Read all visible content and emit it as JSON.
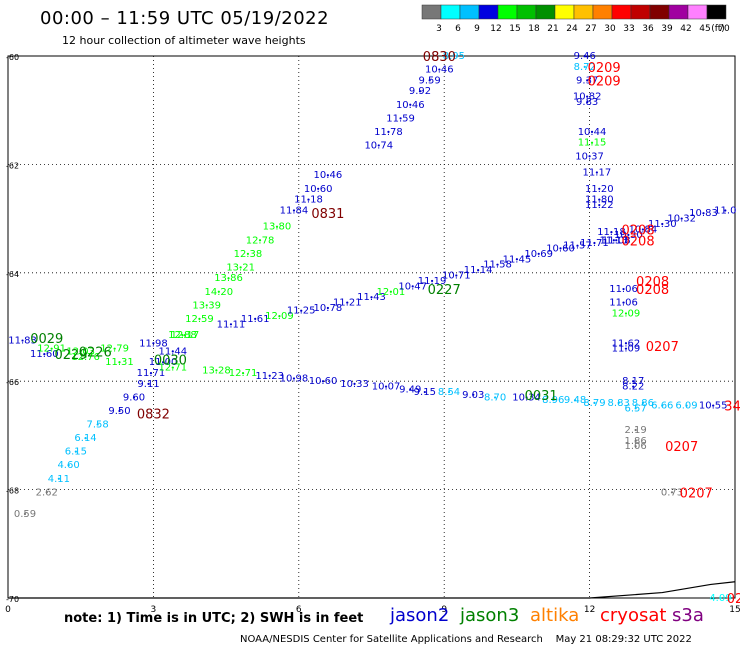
{
  "header": {
    "title": "00:00 – 11:59 UTC 05/19/2022",
    "subtitle": "12 hour collection of altimeter wave heights"
  },
  "colorbar": {
    "labels": [
      "3",
      "6",
      "9",
      "12",
      "15",
      "18",
      "21",
      "24",
      "27",
      "30",
      "33",
      "36",
      "39",
      "42",
      "45",
      "70"
    ],
    "unit": "(ft)",
    "colors": [
      "#777777",
      "#00ffff",
      "#00c0ff",
      "#0000e0",
      "#00ff00",
      "#00c000",
      "#009000",
      "#ffff00",
      "#ffc000",
      "#ff8000",
      "#ff0000",
      "#c00000",
      "#800000",
      "#a000a0",
      "#ff80ff",
      "#000000"
    ]
  },
  "footer": {
    "note": "note:  1) Time is in UTC;  2) SWH is in feet",
    "satellites": [
      {
        "name": "jason2",
        "color": "#0000cc"
      },
      {
        "name": "jason3",
        "color": "#008000"
      },
      {
        "name": "altika",
        "color": "#ff8000"
      },
      {
        "name": "cryosat",
        "color": "#ff0000"
      },
      {
        "name": "s3a",
        "color": "#800080"
      }
    ],
    "credit": "NOAA/NESDIS Center for Satellite Applications and Research",
    "timestamp": "May 21 08:29:32 UTC 2022"
  },
  "chart_data": {
    "type": "scatter",
    "xlim": [
      0,
      15
    ],
    "ylim": [
      -70,
      -60
    ],
    "xticks": [
      "0",
      "3",
      "6",
      "9",
      "12",
      "15"
    ],
    "yticks": [
      "-60",
      "-62",
      "-64",
      "-66",
      "-68",
      "-70"
    ],
    "grid": true,
    "series": [
      {
        "name": "pass-0830",
        "color": "#0000cc",
        "points": [
          [
            9.2,
            -60.0,
            "8.95",
            "#00c0ff"
          ],
          [
            8.9,
            -60.25,
            "10.46",
            "#0000cc"
          ],
          [
            8.7,
            -60.45,
            "9.59",
            "#0000cc"
          ],
          [
            8.5,
            -60.65,
            "9.92",
            "#0000cc"
          ],
          [
            8.3,
            -60.9,
            "10.46",
            "#0000cc"
          ],
          [
            8.1,
            -61.15,
            "11.59",
            "#0000cc"
          ],
          [
            7.85,
            -61.4,
            "11.78",
            "#0000cc"
          ],
          [
            7.65,
            -61.65,
            "10.74",
            "#0000cc"
          ],
          [
            6.6,
            -62.2,
            "10.46",
            "#0000cc"
          ],
          [
            6.4,
            -62.45,
            "10.60",
            "#0000cc"
          ],
          [
            6.2,
            -62.65,
            "11.18",
            "#0000cc"
          ],
          [
            5.9,
            -62.85,
            "11.84",
            "#0000cc"
          ],
          [
            5.55,
            -63.15,
            "13.80",
            "#00ff00"
          ],
          [
            5.2,
            -63.4,
            "12.78",
            "#00ff00"
          ],
          [
            4.95,
            -63.65,
            "12.38",
            "#00ff00"
          ],
          [
            4.8,
            -63.9,
            "13.21",
            "#00ff00"
          ],
          [
            4.55,
            -64.1,
            "13.86",
            "#00ff00"
          ],
          [
            4.35,
            -64.35,
            "14.20",
            "#00ff00"
          ],
          [
            4.1,
            -64.6,
            "13.39",
            "#00ff00"
          ],
          [
            3.95,
            -64.85,
            "12.59",
            "#00ff00"
          ],
          [
            3.65,
            -65.15,
            "12.17",
            "#00ff00"
          ],
          [
            3.4,
            -65.45,
            "11.44",
            "#0000cc"
          ],
          [
            3.2,
            -65.65,
            "11.00",
            "#0000cc"
          ],
          [
            2.95,
            -65.85,
            "11.71",
            "#0000cc"
          ],
          [
            2.9,
            -66.05,
            "9.11",
            "#0000cc"
          ],
          [
            2.6,
            -66.3,
            "9.60",
            "#0000cc"
          ],
          [
            2.3,
            -66.55,
            "9.50",
            "#0000cc"
          ],
          [
            1.85,
            -66.8,
            "7.58",
            "#00c0ff"
          ],
          [
            1.6,
            -67.05,
            "6.14",
            "#00c0ff"
          ],
          [
            1.4,
            -67.3,
            "6.15",
            "#00c0ff"
          ],
          [
            1.25,
            -67.55,
            "4.60",
            "#00c0ff"
          ],
          [
            1.05,
            -67.8,
            "4.11",
            "#00c0ff"
          ],
          [
            0.8,
            -68.05,
            "2.62",
            "#777777"
          ],
          [
            0.35,
            -68.45,
            "0.59",
            "#777777"
          ]
        ]
      },
      {
        "name": "pass-0227",
        "color": "#0000cc",
        "points": [
          [
            0.3,
            -65.25,
            "11.83",
            "#0000cc"
          ],
          [
            0.75,
            -65.5,
            "11.60",
            "#0000cc"
          ],
          [
            1.5,
            -65.45,
            "12.03",
            "#00ff00"
          ],
          [
            2.2,
            -65.4,
            "12.79",
            "#00ff00"
          ],
          [
            3.0,
            -65.3,
            "11.98",
            "#0000cc"
          ],
          [
            3.6,
            -65.15,
            "12.88",
            "#00ff00"
          ],
          [
            4.6,
            -64.95,
            "11.11",
            "#0000cc"
          ],
          [
            5.1,
            -64.85,
            "11.61",
            "#0000cc"
          ],
          [
            5.6,
            -64.8,
            "12.09",
            "#00ff00"
          ],
          [
            6.05,
            -64.7,
            "11.25",
            "#0000cc"
          ],
          [
            6.6,
            -64.65,
            "10.78",
            "#0000cc"
          ],
          [
            7.0,
            -64.55,
            "11.21",
            "#0000cc"
          ],
          [
            7.5,
            -64.45,
            "11.43",
            "#0000cc"
          ],
          [
            7.9,
            -64.35,
            "12.01",
            "#00ff00"
          ],
          [
            8.35,
            -64.25,
            "10.47",
            "#0000cc"
          ],
          [
            8.75,
            -64.15,
            "11.19",
            "#0000cc"
          ],
          [
            9.25,
            -64.05,
            "10.71",
            "#0000cc"
          ],
          [
            9.7,
            -63.95,
            "11.14",
            "#0000cc"
          ],
          [
            10.1,
            -63.85,
            "11.58",
            "#0000cc"
          ],
          [
            10.5,
            -63.75,
            "11.45",
            "#0000cc"
          ],
          [
            10.95,
            -63.65,
            "10.69",
            "#0000cc"
          ],
          [
            11.4,
            -63.55,
            "10.60",
            "#0000cc"
          ],
          [
            11.75,
            -63.5,
            "11.57",
            "#0000cc"
          ],
          [
            12.1,
            -63.45,
            "11.71",
            "#0000cc"
          ],
          [
            12.55,
            -63.4,
            "11.08",
            "#0000cc"
          ],
          [
            12.8,
            -63.3,
            "10.30",
            "#0000cc"
          ],
          [
            13.1,
            -63.2,
            "10.84",
            "#0000cc"
          ],
          [
            13.5,
            -63.1,
            "11.30",
            "#0000cc"
          ],
          [
            13.9,
            -63.0,
            "10.32",
            "#0000cc"
          ],
          [
            14.35,
            -62.9,
            "10.83",
            "#0000cc"
          ],
          [
            14.8,
            -62.85,
            "11.0",
            "#0000cc"
          ]
        ]
      },
      {
        "name": "pass-0031",
        "color": "#0000cc",
        "points": [
          [
            0.9,
            -65.4,
            "12.91",
            "#00ff00"
          ],
          [
            1.6,
            -65.55,
            "12.76",
            "#00ff00"
          ],
          [
            2.3,
            -65.65,
            "11.31",
            "#00ff00"
          ],
          [
            3.4,
            -65.75,
            "12.71",
            "#00ff00"
          ],
          [
            4.3,
            -65.8,
            "13.28",
            "#00ff00"
          ],
          [
            4.85,
            -65.85,
            "12.71",
            "#00ff00"
          ],
          [
            5.4,
            -65.9,
            "11.23",
            "#0000cc"
          ],
          [
            5.9,
            -65.95,
            "10.98",
            "#0000cc"
          ],
          [
            6.5,
            -66.0,
            "10.60",
            "#0000cc"
          ],
          [
            7.15,
            -66.05,
            "10.33",
            "#0000cc"
          ],
          [
            7.8,
            -66.1,
            "10.07",
            "#0000cc"
          ],
          [
            8.3,
            -66.15,
            "9.49",
            "#0000cc"
          ],
          [
            8.6,
            -66.2,
            "9.15",
            "#0000cc"
          ],
          [
            9.1,
            -66.2,
            "8.54",
            "#00c0ff"
          ],
          [
            9.6,
            -66.25,
            "9.03",
            "#0000cc"
          ],
          [
            10.05,
            -66.3,
            "8.70",
            "#00c0ff"
          ],
          [
            10.7,
            -66.3,
            "10.34",
            "#0000cc"
          ],
          [
            11.25,
            -66.35,
            "8.96",
            "#00c0ff"
          ],
          [
            11.7,
            -66.35,
            "9.48",
            "#00c0ff"
          ],
          [
            12.1,
            -66.4,
            "8.79",
            "#00c0ff"
          ],
          [
            12.6,
            -66.4,
            "8.83",
            "#00c0ff"
          ],
          [
            13.1,
            -66.4,
            "8.86",
            "#00c0ff"
          ],
          [
            13.5,
            -66.45,
            "6.66",
            "#00c0ff"
          ],
          [
            14.0,
            -66.45,
            "6.09",
            "#00c0ff"
          ],
          [
            14.55,
            -66.45,
            "10.55",
            "#0000cc"
          ]
        ]
      },
      {
        "name": "pass-0209",
        "color": "#0000cc",
        "points": [
          [
            11.9,
            -60.0,
            "9.46",
            "#0000cc"
          ],
          [
            11.9,
            -60.2,
            "8.72",
            "#00c0ff"
          ],
          [
            11.95,
            -60.45,
            "9.37",
            "#0000cc"
          ],
          [
            11.95,
            -60.75,
            "10.82",
            "#0000cc"
          ],
          [
            11.95,
            -60.85,
            "9.83",
            "#0000cc"
          ],
          [
            12.05,
            -61.4,
            "10.44",
            "#0000cc"
          ],
          [
            12.05,
            -61.6,
            "11.15",
            "#00ff00"
          ],
          [
            12.0,
            -61.85,
            "10.37",
            "#0000cc"
          ],
          [
            12.15,
            -62.15,
            "11.17",
            "#0000cc"
          ],
          [
            12.2,
            -62.45,
            "11.20",
            "#0000cc"
          ],
          [
            12.2,
            -62.65,
            "11.80",
            "#0000cc"
          ],
          [
            12.2,
            -62.75,
            "11.22",
            "#0000cc"
          ],
          [
            12.45,
            -63.25,
            "11.18",
            "#0000cc"
          ],
          [
            12.5,
            -63.4,
            "11.13",
            "#0000cc"
          ],
          [
            12.7,
            -64.3,
            "11.06",
            "#0000cc"
          ],
          [
            12.7,
            -64.55,
            "11.06",
            "#0000cc"
          ],
          [
            12.75,
            -64.75,
            "12.09",
            "#00ff00"
          ],
          [
            12.75,
            -65.3,
            "11.62",
            "#0000cc"
          ],
          [
            12.75,
            -65.4,
            "11.09",
            "#0000cc"
          ],
          [
            12.9,
            -66.0,
            "8.17",
            "#0000cc"
          ],
          [
            12.9,
            -66.1,
            "8.22",
            "#0000cc"
          ],
          [
            12.95,
            -66.5,
            "6.57",
            "#00c0ff"
          ],
          [
            12.95,
            -66.9,
            "2.19",
            "#777777"
          ],
          [
            12.95,
            -67.1,
            "1.86",
            "#777777"
          ],
          [
            12.95,
            -67.2,
            "1.06",
            "#777777"
          ],
          [
            13.7,
            -68.05,
            "0.73",
            "#777777"
          ],
          [
            14.7,
            -70.0,
            "4.09",
            "#00ffff"
          ]
        ]
      }
    ],
    "time_labels": [
      {
        "x": 8.9,
        "y": -60.0,
        "text": "0830",
        "color": "#800000"
      },
      {
        "x": 6.6,
        "y": -62.9,
        "text": "0831",
        "color": "#800000"
      },
      {
        "x": 3.0,
        "y": -66.6,
        "text": "0832",
        "color": "#800000"
      },
      {
        "x": 12.3,
        "y": -60.2,
        "text": "0209",
        "color": "#ff0000"
      },
      {
        "x": 12.3,
        "y": -60.45,
        "text": "0209",
        "color": "#ff0000"
      },
      {
        "x": 13.0,
        "y": -63.2,
        "text": "0208",
        "color": "#ff0000"
      },
      {
        "x": 13.0,
        "y": -63.4,
        "text": "0208",
        "color": "#ff0000"
      },
      {
        "x": 13.3,
        "y": -64.15,
        "text": "0208",
        "color": "#ff0000"
      },
      {
        "x": 13.3,
        "y": -64.3,
        "text": "0208",
        "color": "#ff0000"
      },
      {
        "x": 13.5,
        "y": -65.35,
        "text": "0207",
        "color": "#ff0000"
      },
      {
        "x": 13.9,
        "y": -67.2,
        "text": "0207",
        "color": "#ff0000"
      },
      {
        "x": 14.2,
        "y": -68.05,
        "text": "0207",
        "color": "#ff0000"
      },
      {
        "x": 15.0,
        "y": -70.0,
        "text": "02",
        "color": "#ff0000"
      },
      {
        "x": 14.95,
        "y": -66.45,
        "text": "34",
        "color": "#ff0000"
      },
      {
        "x": 0.8,
        "y": -65.2,
        "text": "0029",
        "color": "#008000"
      },
      {
        "x": 1.3,
        "y": -65.5,
        "text": "0229",
        "color": "#008000"
      },
      {
        "x": 1.8,
        "y": -65.45,
        "text": "0226",
        "color": "#008000"
      },
      {
        "x": 3.35,
        "y": -65.6,
        "text": "0030",
        "color": "#008000"
      },
      {
        "x": 9.0,
        "y": -64.3,
        "text": "0227",
        "color": "#008000"
      },
      {
        "x": 11.0,
        "y": -66.25,
        "text": "0031",
        "color": "#008000"
      }
    ],
    "bottom_line": [
      [
        0.0,
        -70.0
      ],
      [
        3.0,
        -70.0
      ],
      [
        6.0,
        -70.0
      ],
      [
        9.0,
        -70.0
      ],
      [
        12.0,
        -70.0
      ],
      [
        13.5,
        -69.9
      ],
      [
        14.5,
        -69.75
      ],
      [
        15.0,
        -69.7
      ]
    ]
  }
}
